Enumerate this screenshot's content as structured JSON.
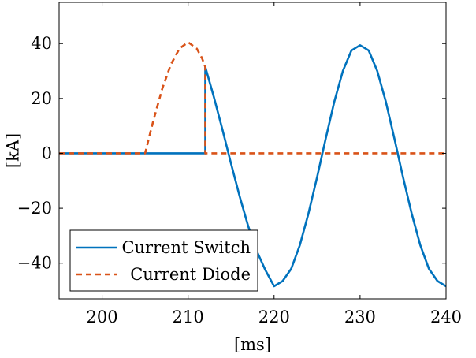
{
  "chart_data": {
    "type": "line",
    "xlabel": "[ms]",
    "ylabel": "[kA]",
    "xlim": [
      195,
      240
    ],
    "ylim": [
      -53,
      55
    ],
    "xticks": [
      200,
      210,
      220,
      230,
      240
    ],
    "yticks": [
      -40,
      -20,
      0,
      20,
      40
    ],
    "ytick_labels": [
      "−40",
      "−20",
      "0",
      "20",
      "40"
    ],
    "grid": false,
    "legend_position": "bottom-left",
    "colors": {
      "switch": "#0072bd",
      "diode": "#d95319"
    },
    "series": [
      {
        "name": "Current Switch",
        "style": "solid",
        "x": [
          195,
          212,
          212,
          213,
          214,
          215,
          216,
          217,
          218,
          219,
          220,
          221,
          222,
          223,
          224,
          225,
          226,
          227,
          228,
          229,
          230,
          231,
          232,
          233,
          234,
          235,
          236,
          237,
          238,
          239,
          240
        ],
        "y": [
          0,
          0,
          31.5,
          20.5,
          8.6,
          -3.8,
          -15.7,
          -26.6,
          -35.7,
          -42.6,
          -48.4,
          -46.5,
          -42,
          -33.4,
          -21.9,
          -8.7,
          5.3,
          18.8,
          30,
          37.5,
          39.4,
          37.5,
          30,
          18.8,
          5.3,
          -8.7,
          -21.9,
          -33.4,
          -42,
          -46.5,
          -48.4
        ]
      },
      {
        "name": "Current Diode",
        "style": "dashed",
        "x": [
          195,
          205,
          205.5,
          206,
          207,
          208,
          209,
          210,
          211,
          211.6,
          212,
          212,
          240
        ],
        "y": [
          0,
          0,
          6.3,
          12.4,
          23.6,
          32.4,
          38.2,
          40.5,
          38.2,
          34.8,
          31.5,
          0,
          0
        ]
      }
    ]
  }
}
